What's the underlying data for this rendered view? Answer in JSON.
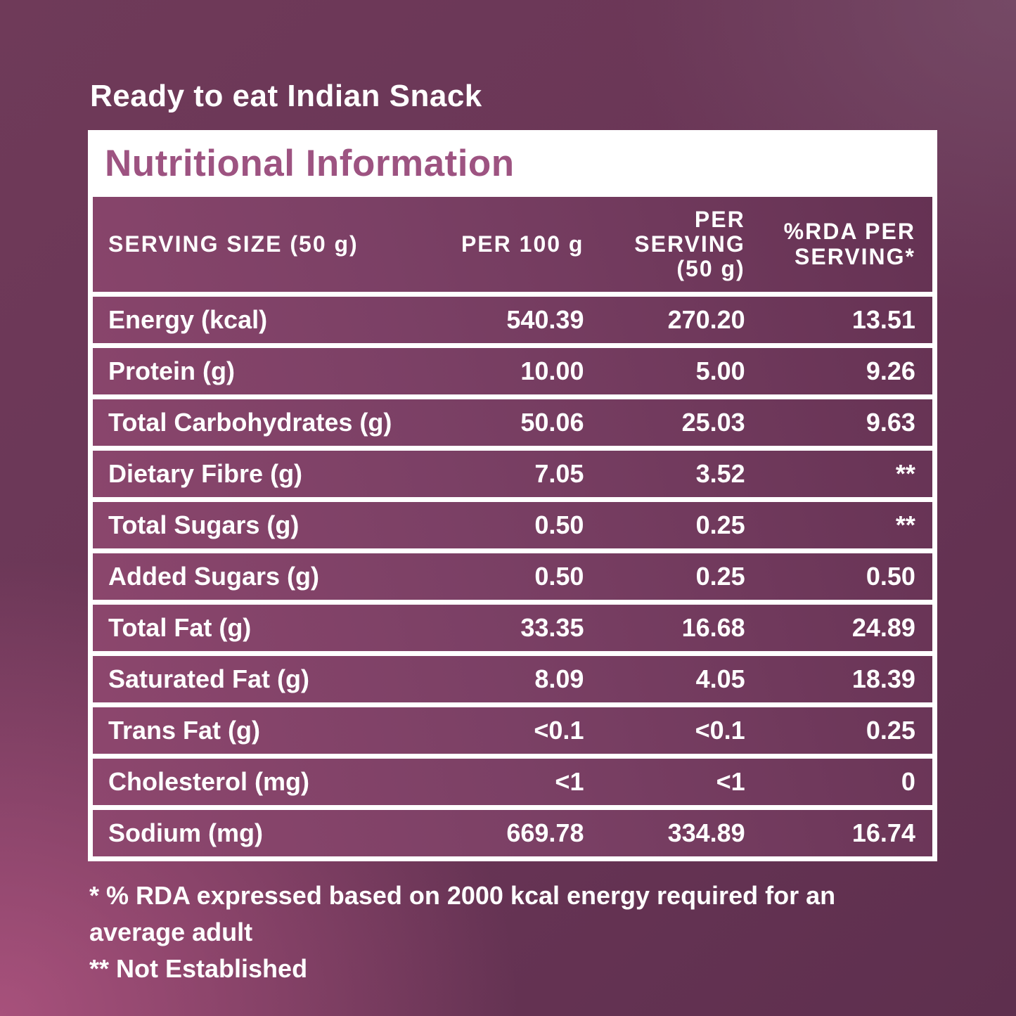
{
  "page_title": "Ready to eat Indian Snack",
  "card": {
    "heading": "Nutritional Information"
  },
  "table": {
    "header": {
      "col1": "SERVING SIZE (50 g)",
      "col2": "PER 100 g",
      "col3_lines": [
        "PER",
        "SERVING",
        "(50 g)"
      ],
      "col4_lines": [
        "%RDA PER",
        "SERVING*"
      ]
    },
    "rows": [
      {
        "label": "Energy (kcal)",
        "per100": "540.39",
        "per_serving": "270.20",
        "rda": "13.51"
      },
      {
        "label": "Protein (g)",
        "per100": "10.00",
        "per_serving": "5.00",
        "rda": "9.26"
      },
      {
        "label": "Total Carbohydrates (g)",
        "per100": "50.06",
        "per_serving": "25.03",
        "rda": "9.63"
      },
      {
        "label": "Dietary Fibre (g)",
        "per100": "7.05",
        "per_serving": "3.52",
        "rda": "**"
      },
      {
        "label": "Total Sugars (g)",
        "per100": "0.50",
        "per_serving": "0.25",
        "rda": "**"
      },
      {
        "label": "Added Sugars (g)",
        "per100": "0.50",
        "per_serving": "0.25",
        "rda": "0.50"
      },
      {
        "label": "Total Fat (g)",
        "per100": "33.35",
        "per_serving": "16.68",
        "rda": "24.89"
      },
      {
        "label": "Saturated Fat (g)",
        "per100": "8.09",
        "per_serving": "4.05",
        "rda": "18.39"
      },
      {
        "label": "Trans Fat (g)",
        "per100": "<0.1",
        "per_serving": "<0.1",
        "rda": "0.25"
      },
      {
        "label": "Cholesterol (mg)",
        "per100": "<1",
        "per_serving": "<1",
        "rda": "0"
      },
      {
        "label": "Sodium (mg)",
        "per100": "669.78",
        "per_serving": "334.89",
        "rda": "16.74"
      }
    ]
  },
  "footnotes": {
    "rda_note": "* % RDA expressed based on 2000 kcal energy required for an average adult",
    "not_established_note": "** Not Established"
  },
  "colors": {
    "heading_text": "#9d5381",
    "table_purple": "#7b4065",
    "card_background": "#ffffff",
    "text_white": "#ffffff",
    "background_dark": "#5e2f4e",
    "background_light": "#a7517c"
  }
}
